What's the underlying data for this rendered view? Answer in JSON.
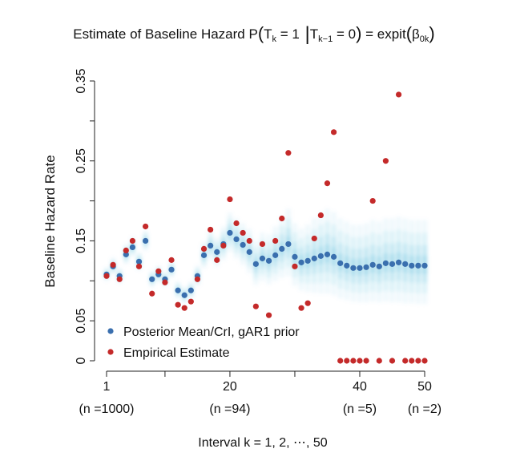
{
  "chart_data": {
    "type": "scatter",
    "title": "Estimate of Baseline Hazard P(T",
    "title_parts": {
      "prefix": "Estimate of Baseline Hazard P",
      "t": "T",
      "k": "k",
      "eq1": " = 1",
      "t2": "T",
      "km1": "k−1",
      "eq0": " = 0",
      "rhs": " = expit",
      "beta": "β",
      "beta_sub": "0k"
    },
    "ylabel": "Baseline Hazard Rate",
    "xlabel": "Interval k = 1, 2, ⋯, 50",
    "ylim": [
      0,
      0.35
    ],
    "xlim": [
      1,
      50
    ],
    "y_ticks": [
      "0",
      "0.05",
      "0.15",
      "0.25",
      "0.35"
    ],
    "y_tick_values": [
      0,
      0.05,
      0.15,
      0.25,
      0.35
    ],
    "y_minor_ticks": [
      0.1,
      0.2,
      0.3
    ],
    "x_ticks": [
      {
        "x": 1,
        "label": "1",
        "sublabel": "(n =1000)"
      },
      {
        "x": 20,
        "label": "20",
        "sublabel": "(n =94)"
      },
      {
        "x": 40,
        "label": "40",
        "sublabel": "(n =5)"
      },
      {
        "x": 50,
        "label": "50",
        "sublabel": "(n =2)"
      }
    ],
    "x_minor_ticks": [
      10,
      30
    ],
    "legend": {
      "placement": "bottom-left",
      "entries": [
        {
          "label": "Posterior Mean/CrI, gAR1 prior",
          "color": "#3a6fae"
        },
        {
          "label": "Empirical Estimate",
          "color": "#c42a2a"
        }
      ]
    },
    "series": [
      {
        "name": "Posterior Mean/CrI, gAR1 prior",
        "color": "#3a6fae",
        "band_color": "#6cc3e0",
        "x": [
          1,
          2,
          3,
          4,
          5,
          6,
          7,
          8,
          9,
          10,
          11,
          12,
          13,
          14,
          15,
          16,
          17,
          18,
          19,
          20,
          21,
          22,
          23,
          24,
          25,
          26,
          27,
          28,
          29,
          30,
          31,
          32,
          33,
          34,
          35,
          36,
          37,
          38,
          39,
          40,
          41,
          42,
          43,
          44,
          45,
          46,
          47,
          48,
          49,
          50
        ],
        "mean": [
          0.108,
          0.118,
          0.106,
          0.133,
          0.142,
          0.124,
          0.15,
          0.102,
          0.108,
          0.102,
          0.114,
          0.088,
          0.082,
          0.088,
          0.106,
          0.132,
          0.144,
          0.136,
          0.146,
          0.16,
          0.152,
          0.145,
          0.136,
          0.121,
          0.128,
          0.125,
          0.132,
          0.14,
          0.146,
          0.13,
          0.123,
          0.125,
          0.128,
          0.131,
          0.133,
          0.13,
          0.122,
          0.119,
          0.116,
          0.116,
          0.117,
          0.12,
          0.118,
          0.122,
          0.121,
          0.123,
          0.121,
          0.119,
          0.119,
          0.119
        ],
        "lower": [
          0.1,
          0.108,
          0.097,
          0.121,
          0.13,
          0.113,
          0.138,
          0.092,
          0.098,
          0.093,
          0.104,
          0.078,
          0.072,
          0.078,
          0.094,
          0.116,
          0.126,
          0.118,
          0.126,
          0.136,
          0.128,
          0.12,
          0.11,
          0.095,
          0.1,
          0.096,
          0.1,
          0.104,
          0.106,
          0.094,
          0.088,
          0.086,
          0.085,
          0.084,
          0.084,
          0.082,
          0.078,
          0.076,
          0.074,
          0.073,
          0.073,
          0.074,
          0.073,
          0.074,
          0.073,
          0.073,
          0.072,
          0.072,
          0.071,
          0.071
        ],
        "upper": [
          0.117,
          0.129,
          0.116,
          0.146,
          0.155,
          0.136,
          0.163,
          0.113,
          0.119,
          0.112,
          0.125,
          0.099,
          0.093,
          0.099,
          0.119,
          0.149,
          0.163,
          0.155,
          0.168,
          0.185,
          0.178,
          0.172,
          0.165,
          0.15,
          0.16,
          0.158,
          0.168,
          0.18,
          0.19,
          0.172,
          0.165,
          0.17,
          0.178,
          0.185,
          0.19,
          0.186,
          0.178,
          0.174,
          0.17,
          0.17,
          0.172,
          0.176,
          0.174,
          0.178,
          0.178,
          0.18,
          0.178,
          0.176,
          0.176,
          0.176
        ]
      },
      {
        "name": "Empirical Estimate",
        "color": "#c42a2a",
        "x": [
          1,
          2,
          3,
          4,
          5,
          6,
          7,
          8,
          9,
          10,
          11,
          12,
          13,
          14,
          15,
          16,
          17,
          18,
          19,
          20,
          21,
          22,
          23,
          24,
          25,
          26,
          27,
          28,
          29,
          30,
          31,
          32,
          33,
          34,
          35,
          36,
          37,
          38,
          39,
          40,
          41,
          42,
          43,
          44,
          45,
          46,
          47,
          48,
          49,
          50
        ],
        "values": [
          0.106,
          0.12,
          0.102,
          0.138,
          0.15,
          0.118,
          0.168,
          0.084,
          0.112,
          0.098,
          0.126,
          0.07,
          0.066,
          0.074,
          0.102,
          0.14,
          0.164,
          0.126,
          0.144,
          0.202,
          0.172,
          0.16,
          0.15,
          0.068,
          0.146,
          0.057,
          0.15,
          0.178,
          0.26,
          0.118,
          0.066,
          0.072,
          0.153,
          0.182,
          0.222,
          0.286,
          0,
          0,
          0,
          0,
          0,
          0.2,
          0,
          0.25,
          0,
          0.333,
          0,
          0,
          0,
          0
        ]
      }
    ]
  }
}
